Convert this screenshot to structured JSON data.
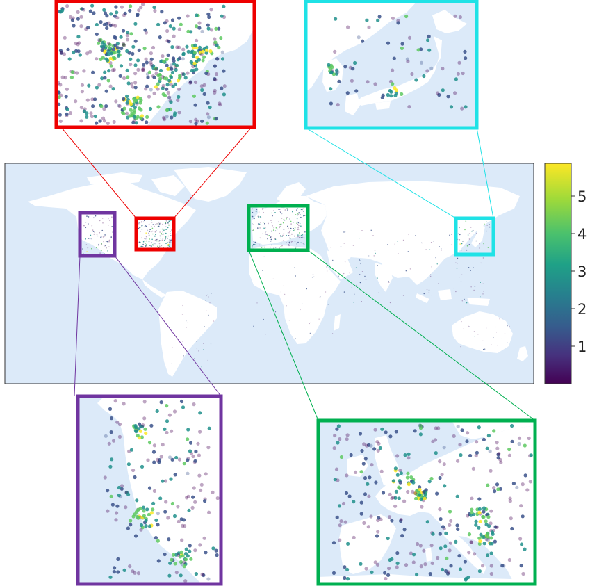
{
  "colorbar": {
    "ticks": [
      "1",
      "2",
      "3",
      "4",
      "5"
    ],
    "tick_values": [
      1,
      2,
      3,
      4,
      5
    ],
    "min": 0,
    "max": 5.85,
    "colormap": "viridis",
    "colors": [
      "#440154",
      "#3b528b",
      "#21918c",
      "#5ec962",
      "#fde725"
    ]
  },
  "colors": {
    "ocean": "#dceaf9",
    "land": "#ffffff",
    "north_america_east": "#ee0000",
    "japan": "#1fe2e6",
    "north_america_west": "#7035a0",
    "europe": "#00b050"
  },
  "insets": [
    {
      "id": "north_america_east",
      "color_key": "north_america_east"
    },
    {
      "id": "japan",
      "color_key": "japan"
    },
    {
      "id": "north_america_west",
      "color_key": "north_america_west"
    },
    {
      "id": "europe",
      "color_key": "europe"
    }
  ]
}
